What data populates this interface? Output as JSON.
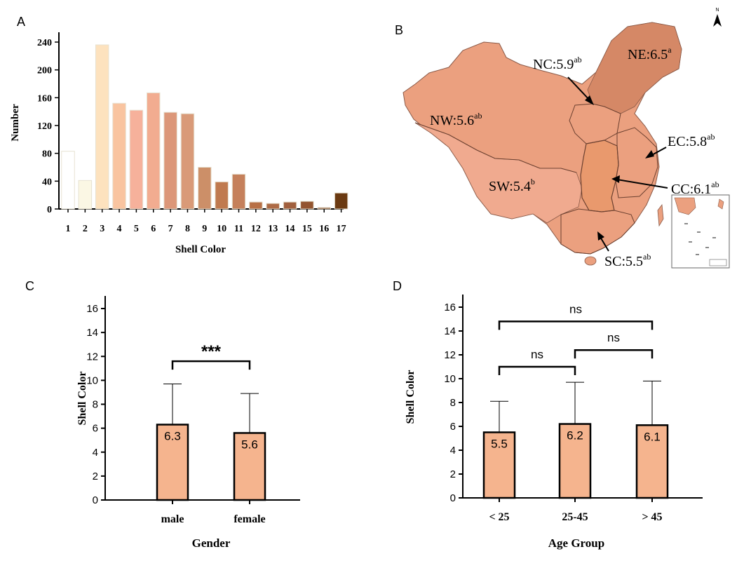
{
  "panels": {
    "a": "A",
    "b": "B",
    "c": "C",
    "d": "D"
  },
  "chart_data": [
    {
      "id": "A",
      "type": "bar",
      "xlabel": "Shell Color",
      "ylabel": "Number",
      "ylim": [
        0,
        250
      ],
      "yticks": [
        0,
        40,
        80,
        120,
        160,
        200,
        240
      ],
      "categories": [
        "1",
        "2",
        "3",
        "4",
        "5",
        "6",
        "7",
        "8",
        "9",
        "10",
        "11",
        "12",
        "13",
        "14",
        "15",
        "16",
        "17"
      ],
      "values": [
        83,
        41,
        236,
        152,
        142,
        167,
        139,
        137,
        60,
        39,
        50,
        10,
        8,
        10,
        11,
        2,
        23
      ],
      "colors": [
        "#ffffff",
        "#fbf7e4",
        "#fde2be",
        "#f9c4a0",
        "#f6b19b",
        "#f2ac90",
        "#dc9779",
        "#d99a78",
        "#cc8f68",
        "#c07a4f",
        "#c5805b",
        "#b87046",
        "#ad6a45",
        "#a1603e",
        "#93542f",
        "#844822",
        "#6b3a12"
      ]
    },
    {
      "id": "C",
      "type": "bar",
      "xlabel": "Gender",
      "ylabel": "Shell  Color",
      "ylim": [
        0,
        17
      ],
      "yticks": [
        0,
        2,
        4,
        6,
        8,
        10,
        12,
        14,
        16
      ],
      "categories": [
        "male",
        "female"
      ],
      "values": [
        6.3,
        5.6
      ],
      "errors": [
        3.4,
        3.3
      ],
      "labels": [
        "6.3",
        "5.6"
      ],
      "significance": [
        {
          "from": 0,
          "to": 1,
          "y": 11.6,
          "label": "***"
        }
      ]
    },
    {
      "id": "D",
      "type": "bar",
      "xlabel": "Age Group",
      "ylabel": "Shell  Color",
      "ylim": [
        0,
        17
      ],
      "yticks": [
        0,
        2,
        4,
        6,
        8,
        10,
        12,
        14,
        16
      ],
      "categories": [
        "< 25",
        "25-45",
        "> 45"
      ],
      "values": [
        5.5,
        6.2,
        6.1
      ],
      "errors": [
        2.6,
        3.5,
        3.7
      ],
      "labels": [
        "5.5",
        "6.2",
        "6.1"
      ],
      "significance": [
        {
          "from": 0,
          "to": 1,
          "y": 11.0,
          "label": "ns"
        },
        {
          "from": 1,
          "to": 2,
          "y": 12.4,
          "label": "ns"
        },
        {
          "from": 0,
          "to": 2,
          "y": 14.8,
          "label": "ns"
        }
      ]
    }
  ],
  "map": {
    "north_arrow": "N",
    "regions": [
      {
        "code": "NE",
        "value": "6.5",
        "sup": "a"
      },
      {
        "code": "NC",
        "value": "5.9",
        "sup": "ab"
      },
      {
        "code": "NW",
        "value": "5.6",
        "sup": "ab"
      },
      {
        "code": "EC",
        "value": "5.8",
        "sup": "ab"
      },
      {
        "code": "SW",
        "value": "5.4",
        "sup": "b"
      },
      {
        "code": "CC",
        "value": "6.1",
        "sup": "ab"
      },
      {
        "code": "SC",
        "value": "5.5",
        "sup": "ab"
      }
    ]
  },
  "colors": {
    "bar_fill": "#f5b48e",
    "axis": "#000000",
    "map_base": "#eba07f",
    "map_ne": "#d58866",
    "map_sw": "#f0aa8f",
    "map_cc": "#e9996d"
  }
}
